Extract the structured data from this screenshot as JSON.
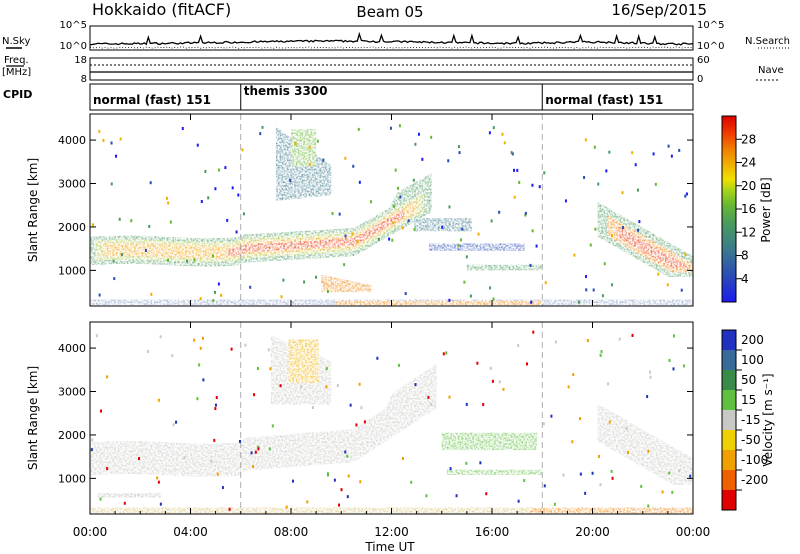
{
  "header": {
    "station": "Hokkaido (fitACF)",
    "beam": "Beam 05",
    "date": "16/Sep/2015"
  },
  "top_panel": {
    "noise_sky_label": "N.Sky",
    "noise_search_label": "N.Search",
    "noise_ticks_left": [
      "10^5",
      "10^0"
    ],
    "noise_ticks_right": [
      "10^5",
      "10^0"
    ],
    "freq_label": "Freq.",
    "freq_unit": "[MHz]",
    "freq_ticks": [
      "18",
      "8"
    ],
    "nave_label": "Nave",
    "nave_ticks": [
      "60",
      "0"
    ],
    "cpid_label": "CPID",
    "modes": [
      {
        "name": "normal (fast) 151",
        "start": 0
      },
      {
        "name": "themis 3300",
        "start": 6
      },
      {
        "name": "normal (fast) 151",
        "start": 18
      }
    ]
  },
  "chart_data": [
    {
      "type": "heatmap",
      "name": "power",
      "ylabel": "Slant Range [km]",
      "yticks": [
        1000,
        2000,
        3000,
        4000
      ],
      "ylim": [
        180,
        4600
      ],
      "xlim": [
        0,
        24
      ],
      "colorbar_label": "Power [dB]",
      "colorbar_ticks": [
        4,
        8,
        12,
        16,
        20,
        24,
        28
      ],
      "colorbar_colors": [
        "#1c1cf0",
        "#2b4bb5",
        "#3a7a8e",
        "#4a9a60",
        "#66b833",
        "#a8d41c",
        "#f0e000",
        "#f0b000",
        "#f08000",
        "#f04000",
        "#e00000"
      ],
      "echo_regions": [
        {
          "t": [
            0.0,
            6.0
          ],
          "r": [
            1250,
            1700
          ],
          "level": 18
        },
        {
          "t": [
            6.0,
            10.5
          ],
          "r": [
            1300,
            1900
          ],
          "level": 26
        },
        {
          "t": [
            10.5,
            13.5
          ],
          "r": [
            1600,
            2600
          ],
          "level": 24
        },
        {
          "t": [
            21.0,
            24.0
          ],
          "r": [
            1100,
            1900
          ],
          "level": 26
        }
      ]
    },
    {
      "type": "heatmap",
      "name": "velocity",
      "ylabel": "Slant Range [km]",
      "yticks": [
        1000,
        2000,
        3000,
        4000
      ],
      "ylim": [
        180,
        4600
      ],
      "xlim": [
        0,
        24
      ],
      "xlabel": "Time UT",
      "xticks": [
        "00:00",
        "04:00",
        "08:00",
        "12:00",
        "16:00",
        "20:00",
        "00:00"
      ],
      "colorbar_label": "Velocity [m s⁻¹]",
      "colorbar_ticks": [
        "200",
        "100",
        "50",
        "15",
        "-15",
        "-50",
        "-100",
        "-200"
      ],
      "colorbar_colors": [
        "#2030c0",
        "#3a6a9a",
        "#3a8a4a",
        "#60c040",
        "#c8c8c4",
        "#f0d000",
        "#f0a000",
        "#f06000",
        "#e00000"
      ],
      "echo_regions": [
        {
          "t": [
            0.0,
            6.0
          ],
          "r": [
            1250,
            1700
          ],
          "velocity": 0
        },
        {
          "t": [
            6.0,
            13.5
          ],
          "r": [
            1300,
            2400
          ],
          "velocity": 0
        },
        {
          "t": [
            14.0,
            18.0
          ],
          "r": [
            1600,
            2100
          ],
          "velocity": 40
        },
        {
          "t": [
            18.0,
            24.0
          ],
          "r": [
            200,
            350
          ],
          "velocity": -60
        }
      ]
    }
  ]
}
